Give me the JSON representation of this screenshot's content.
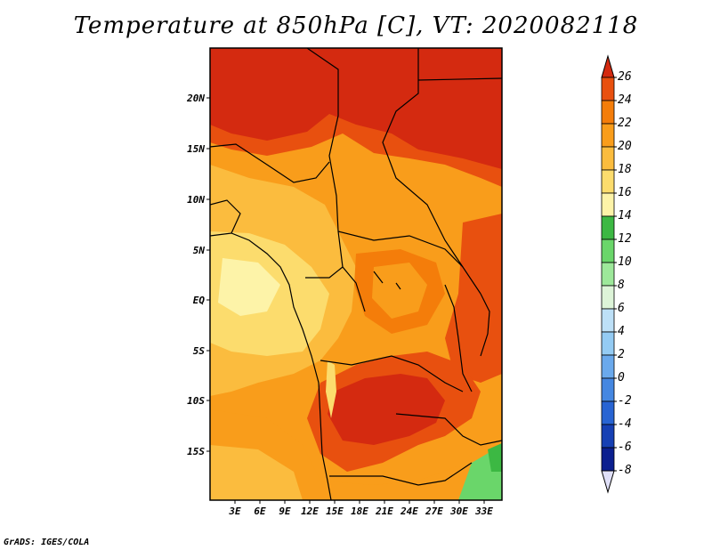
{
  "title": "Temperature at 850hPa [C], VT: 2020082118",
  "credit": "GrADS: IGES/COLA",
  "map": {
    "lat_labels": [
      "20N",
      "15N",
      "10N",
      "5N",
      "EQ",
      "5S",
      "10S",
      "15S"
    ],
    "lon_labels": [
      "3E",
      "6E",
      "9E",
      "12E",
      "15E",
      "18E",
      "21E",
      "24E",
      "27E",
      "30E",
      "33E"
    ]
  },
  "colorbar": {
    "labels": [
      "26",
      "24",
      "22",
      "20",
      "18",
      "16",
      "14",
      "12",
      "10",
      "8",
      "6",
      "4",
      "2",
      "0",
      "-2",
      "-4",
      "-6",
      "-8"
    ],
    "colors": [
      "#d42a10",
      "#e8500f",
      "#f47d0a",
      "#f99d1b",
      "#fbbc3e",
      "#fcdc6d",
      "#fdf3a8",
      "#3cb843",
      "#6ad66a",
      "#9de89a",
      "#ddf4d8",
      "#bde0f7",
      "#94cbf3",
      "#6aa9ec",
      "#4587e1",
      "#2864d3",
      "#1640b4",
      "#0b1f8f",
      "#06085c"
    ],
    "over_color": "#d42a10",
    "under_color": "#e0e0f8"
  }
}
